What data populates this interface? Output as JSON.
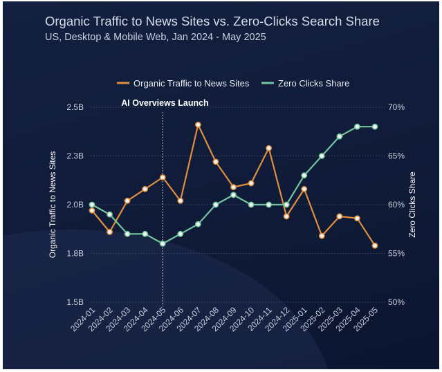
{
  "colors": {
    "organic": "#e08f3e",
    "zero": "#72c59c",
    "grid": "#3c4a6a",
    "annotation_line": "#b8bfd0",
    "marker_fill": "#f2f2f2"
  },
  "chart_data": {
    "type": "line",
    "title": "Organic Traffic to News Sites vs. Zero-Clicks Search Share",
    "subtitle": "US, Desktop & Mobile Web, Jan 2024 - May 2025",
    "categories": [
      "2024-01",
      "2024-02",
      "2024-03",
      "2024-04",
      "2024-05",
      "2024-06",
      "2024-07",
      "2024-08",
      "2024-09",
      "2024-10",
      "2024-11",
      "2024-12",
      "2025-01",
      "2025-02",
      "2025-03",
      "2025-04",
      "2025-05"
    ],
    "series": [
      {
        "name": "Organic Traffic to News Sites",
        "axis": "left",
        "values": [
          1.97,
          1.86,
          2.02,
          2.08,
          2.14,
          2.02,
          2.41,
          2.22,
          2.09,
          2.11,
          2.29,
          1.94,
          2.08,
          1.84,
          1.94,
          1.93,
          1.79
        ]
      },
      {
        "name": "Zero Clicks Share",
        "axis": "right",
        "values": [
          60,
          59,
          57,
          57,
          56,
          57,
          58,
          60,
          61,
          60,
          60,
          60,
          63,
          65,
          67,
          68,
          68
        ]
      }
    ],
    "ylabel": "Organic Traffic to News Sites",
    "y2label": "Zero Clicks Share",
    "ylim": [
      1.5,
      2.5
    ],
    "y2lim": [
      50,
      70
    ],
    "yticks": [
      2.5,
      2.25,
      2.0,
      1.75,
      1.5
    ],
    "ytick_labels": [
      "2.5B",
      "2.3B",
      "2.0B",
      "1.8B",
      "1.5B"
    ],
    "y2ticks": [
      70,
      65,
      60,
      55,
      50
    ],
    "y2tick_labels": [
      "70%",
      "65%",
      "60%",
      "55%",
      "50%"
    ],
    "grid": true,
    "legend": "top-center",
    "annotation": {
      "label": "AI Overviews Launch",
      "category": "2024-05"
    }
  }
}
